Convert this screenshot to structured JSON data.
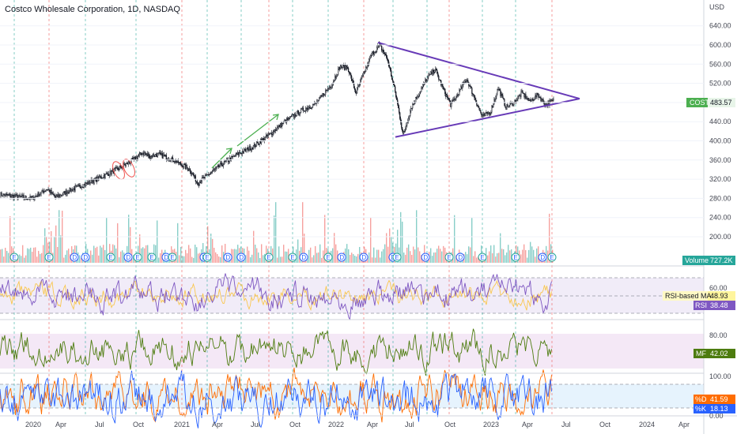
{
  "header": {
    "title": "Costco Wholesale Corporation, 1D, NASDAQ",
    "currency": "USD"
  },
  "colors": {
    "background": "#ffffff",
    "candle_up": "#131722",
    "candle_down": "#131722",
    "volume_up": "#26a69a",
    "volume_down": "#ef5350",
    "triangle": "#673ab7",
    "arrow": "#4caf50",
    "circle": "#ef5350",
    "rsi_line": "#7e57c2",
    "rsi_ma_line": "#f9c74f",
    "rsi_band": "#ede7f6",
    "mfi_line": "#4d7c0f",
    "mfi_band": "#f3e5f5",
    "stoch_k": "#2962ff",
    "stoch_d": "#ff6d00",
    "stoch_band": "#e3f2fd",
    "earnings_line": "#26a69a",
    "dividend_line": "#ef5350"
  },
  "chart_data": [
    {
      "type": "candlestick",
      "symbol": "COST",
      "title": "Costco Wholesale Corporation, 1D, NASDAQ",
      "ylabel": "USD",
      "y_ticks": [
        200,
        240,
        280,
        320,
        360,
        400,
        440,
        480,
        520,
        560,
        600,
        640
      ],
      "ylim": [
        180,
        660
      ],
      "x_ticks": [
        "2020",
        "Apr",
        "Jul",
        "Oct",
        "2021",
        "Apr",
        "Jul",
        "Oct",
        "2022",
        "Apr",
        "Jul",
        "Oct",
        "2023",
        "Apr",
        "Jul",
        "Oct",
        "2024",
        "Apr"
      ],
      "last_price_label": "COST",
      "last_price": "483.57",
      "price_path": [
        [
          0,
          288
        ],
        [
          4,
          280
        ],
        [
          6,
          300
        ],
        [
          7,
          282
        ],
        [
          9,
          298
        ],
        [
          12,
          318
        ],
        [
          15,
          342
        ],
        [
          17,
          362
        ],
        [
          18,
          375
        ],
        [
          19,
          368
        ],
        [
          20,
          372
        ],
        [
          22,
          360
        ],
        [
          24,
          340
        ],
        [
          25,
          312
        ],
        [
          26,
          325
        ],
        [
          28,
          350
        ],
        [
          30,
          372
        ],
        [
          32,
          388
        ],
        [
          34,
          412
        ],
        [
          36,
          440
        ],
        [
          38,
          462
        ],
        [
          40,
          478
        ],
        [
          42,
          520
        ],
        [
          43,
          555
        ],
        [
          44,
          552
        ],
        [
          45,
          500
        ],
        [
          46,
          540
        ],
        [
          47,
          580
        ],
        [
          48,
          600
        ],
        [
          49,
          570
        ],
        [
          50,
          500
        ],
        [
          51,
          412
        ],
        [
          52,
          470
        ],
        [
          54,
          530
        ],
        [
          55,
          550
        ],
        [
          56,
          510
        ],
        [
          57,
          475
        ],
        [
          58,
          500
        ],
        [
          59,
          530
        ],
        [
          60,
          490
        ],
        [
          61,
          450
        ],
        [
          62,
          460
        ],
        [
          63,
          510
        ],
        [
          64,
          470
        ],
        [
          65,
          480
        ],
        [
          66,
          500
        ],
        [
          67,
          482
        ],
        [
          68,
          496
        ],
        [
          69,
          476
        ],
        [
          70,
          483.57
        ]
      ],
      "annotations": {
        "triangle_upper": [
          [
            48,
            605
          ],
          [
            77,
            488
          ]
        ],
        "triangle_lower": [
          [
            51,
            408
          ],
          [
            77,
            488
          ]
        ],
        "arrows": [
          [
            [
              26,
              360
            ],
            [
              30,
              392
            ]
          ],
          [
            [
              32,
              400
            ],
            [
              36,
              458
            ]
          ]
        ],
        "circles": [
          [
            15,
            355
          ],
          [
            16,
            360
          ]
        ]
      },
      "event_markers": [
        "E",
        "E",
        "D",
        "D",
        "E",
        "D",
        "E",
        "E",
        "D",
        "E",
        "D",
        "E",
        "D",
        "D",
        "E",
        "E",
        "D",
        "E",
        "D",
        "D",
        "D",
        "E",
        "D",
        "E",
        "D",
        "E",
        "E",
        "D",
        "E"
      ]
    },
    {
      "type": "bar",
      "name": "Volume",
      "label": "Volume",
      "value_label": "727.2K"
    },
    {
      "type": "line",
      "name": "RSI",
      "series": [
        {
          "name": "RSI",
          "last": "38.48"
        },
        {
          "name": "RSI-based MA",
          "last": "48.93"
        }
      ],
      "y_ticks": [
        40,
        60
      ],
      "ylim": [
        20,
        80
      ],
      "bands": [
        30,
        70
      ]
    },
    {
      "type": "line",
      "name": "MF",
      "series": [
        {
          "name": "MF",
          "last": "42.02"
        }
      ],
      "y_ticks": [
        80
      ],
      "ylim": [
        0,
        100
      ],
      "bands": [
        20,
        80
      ]
    },
    {
      "type": "line",
      "name": "Stoch",
      "series": [
        {
          "name": "%D",
          "last": "41.59"
        },
        {
          "name": "%K",
          "last": "18.13"
        }
      ],
      "y_ticks": [
        0,
        100
      ],
      "ylim": [
        0,
        100
      ],
      "bands": [
        20,
        80
      ]
    }
  ]
}
